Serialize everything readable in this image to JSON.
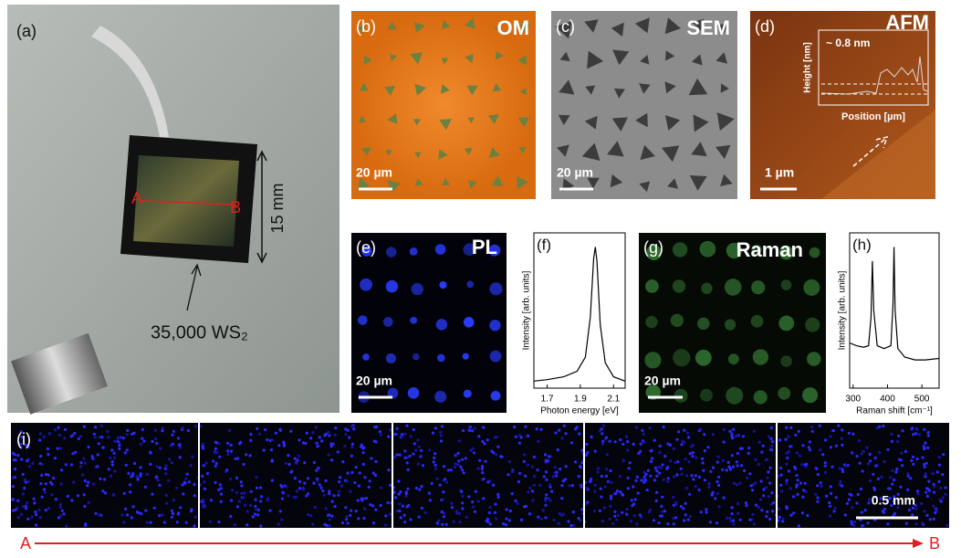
{
  "panels": {
    "a": {
      "label": "(a)",
      "point_a": "A",
      "point_b": "B",
      "size": "15 mm",
      "count": "35,000 WS₂"
    },
    "b": {
      "label": "(b)",
      "technique": "OM",
      "scale": "20 µm"
    },
    "c": {
      "label": "(c)",
      "technique": "SEM",
      "scale": "20 µm"
    },
    "d": {
      "label": "(d)",
      "technique": "AFM",
      "step": "~ 0.8 nm",
      "inset_ylabel": "Height [nm]",
      "inset_xlabel": "Position [µm]",
      "scale": "1 µm"
    },
    "e": {
      "label": "(e)",
      "technique": "PL",
      "scale": "20 µm"
    },
    "g": {
      "label": "(g)",
      "technique": "Raman",
      "scale": "20 µm"
    },
    "i": {
      "label": "(i)",
      "scale": "0.5 mm",
      "start": "A",
      "end": "B"
    }
  },
  "chart_data": [
    {
      "type": "line",
      "label": "(f)",
      "xlabel": "Photon energy [eV]",
      "ylabel": "Intensity [arb. units]",
      "xlim": [
        1.62,
        2.17
      ],
      "ylim": [
        0,
        1.1
      ],
      "xticks": [
        1.7,
        1.9,
        2.1
      ],
      "color": "#000000",
      "x": [
        1.62,
        1.7,
        1.8,
        1.88,
        1.93,
        1.96,
        1.98,
        1.99,
        2.0,
        2.02,
        2.05,
        2.1,
        2.17
      ],
      "values": [
        0.05,
        0.06,
        0.08,
        0.12,
        0.22,
        0.5,
        0.92,
        1.0,
        0.9,
        0.45,
        0.18,
        0.08,
        0.05
      ]
    },
    {
      "type": "line",
      "label": "(h)",
      "xlabel": "Raman shift [cm⁻¹]",
      "ylabel": "Intensity [arb. units]",
      "xlim": [
        290,
        550
      ],
      "ylim": [
        0,
        1.1
      ],
      "xticks": [
        300,
        400,
        500
      ],
      "color": "#000000",
      "x": [
        290,
        310,
        330,
        345,
        352,
        356,
        360,
        370,
        390,
        410,
        416,
        419,
        422,
        430,
        450,
        480,
        510,
        550
      ],
      "values": [
        0.32,
        0.3,
        0.29,
        0.3,
        0.5,
        0.9,
        0.55,
        0.3,
        0.28,
        0.3,
        0.6,
        1.0,
        0.55,
        0.28,
        0.22,
        0.2,
        0.2,
        0.21
      ]
    }
  ]
}
